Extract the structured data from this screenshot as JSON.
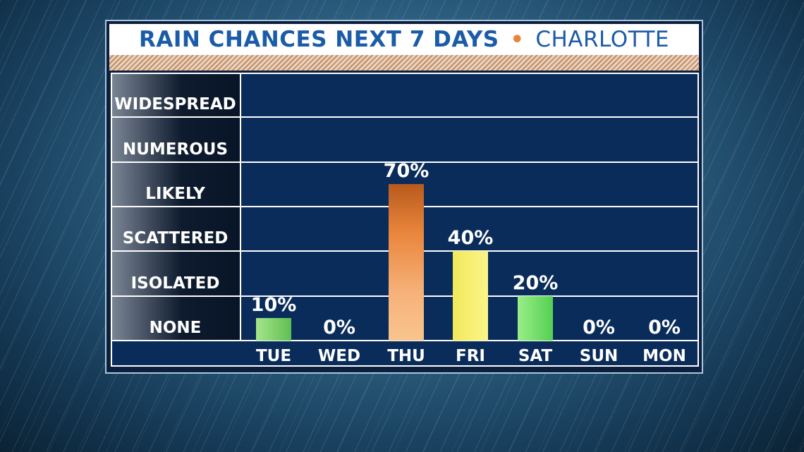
{
  "title": {
    "main": "RAIN CHANCES NEXT 7 DAYS",
    "separator": "•",
    "city": "CHARLOTTE"
  },
  "colors": {
    "title_blue": "#1b5ca8",
    "accent_orange": "#e8843a",
    "grid_bg": "#0a2c5a"
  },
  "chart_data": {
    "type": "bar",
    "title": "RAIN CHANCES NEXT 7 DAYS • CHARLOTTE",
    "categories": [
      "TUE",
      "WED",
      "THU",
      "FRI",
      "SAT",
      "SUN",
      "MON"
    ],
    "values": [
      10,
      0,
      70,
      40,
      20,
      0,
      0
    ],
    "value_labels": [
      "10%",
      "0%",
      "70%",
      "40%",
      "20%",
      "0%",
      "0%"
    ],
    "y_categories": [
      "NONE",
      "ISOLATED",
      "SCATTERED",
      "LIKELY",
      "NUMEROUS",
      "WIDESPREAD"
    ],
    "ylim": [
      0,
      120
    ],
    "bar_colors": [
      "#7fd36a",
      null,
      "#f2994a",
      "#f5ee63",
      "#74e06a",
      null,
      null
    ],
    "grid": true
  }
}
